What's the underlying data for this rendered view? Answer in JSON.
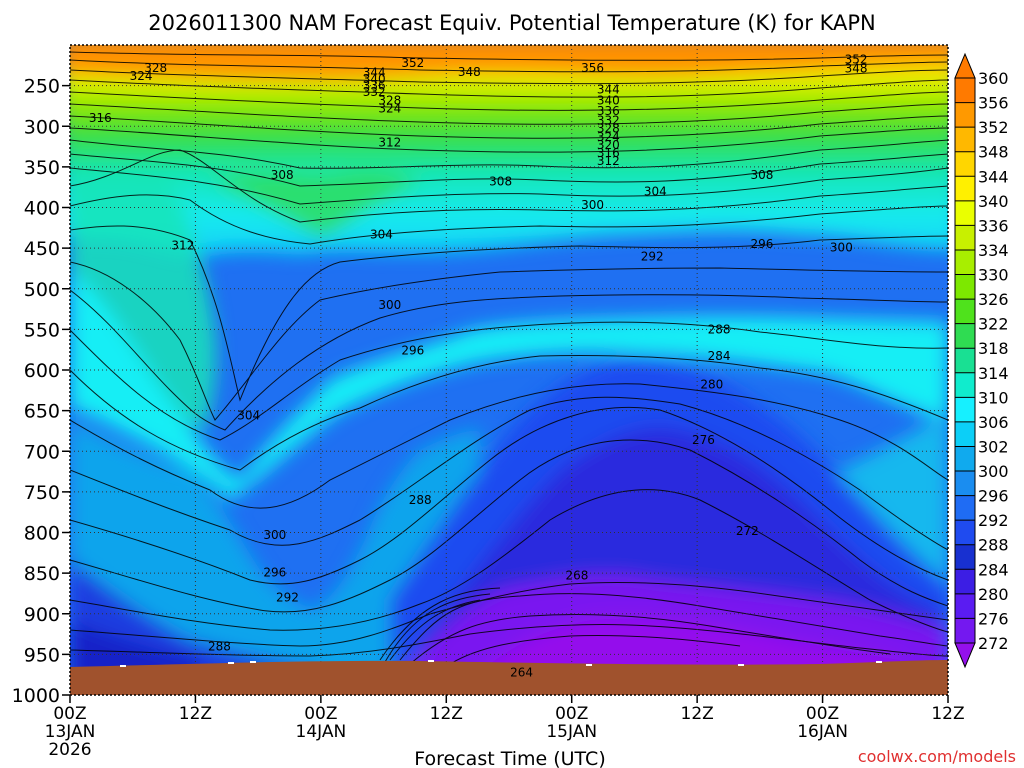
{
  "chart_data": {
    "type": "heatmap",
    "title": "2026011300 NAM Forecast Equiv. Potential Temperature (K) for KAPN",
    "xlabel": "Forecast Time (UTC)",
    "credit": "coolwx.com/models",
    "x_ticks": [
      {
        "hour": 0,
        "lines": [
          "00Z",
          "13JAN",
          "2026"
        ]
      },
      {
        "hour": 12,
        "lines": [
          "12Z"
        ]
      },
      {
        "hour": 24,
        "lines": [
          "00Z",
          "14JAN"
        ]
      },
      {
        "hour": 36,
        "lines": [
          "12Z"
        ]
      },
      {
        "hour": 48,
        "lines": [
          "00Z",
          "15JAN"
        ]
      },
      {
        "hour": 60,
        "lines": [
          "12Z"
        ]
      },
      {
        "hour": 72,
        "lines": [
          "00Z",
          "16JAN"
        ]
      },
      {
        "hour": 84,
        "lines": [
          "12Z"
        ]
      }
    ],
    "xlim": [
      0,
      84
    ],
    "y_ticks": [
      250,
      300,
      350,
      400,
      450,
      500,
      550,
      600,
      650,
      700,
      750,
      800,
      850,
      900,
      950,
      1000
    ],
    "ylim": [
      200,
      1000
    ],
    "colorbar_labels": [
      360,
      356,
      352,
      348,
      344,
      340,
      336,
      334,
      330,
      326,
      322,
      318,
      314,
      310,
      306,
      302,
      300,
      296,
      292,
      288,
      284,
      280,
      276,
      272
    ],
    "colorbar_colors": [
      "#ff7a00",
      "#ff9900",
      "#ffb800",
      "#ffd600",
      "#fff000",
      "#eaff00",
      "#c8f000",
      "#a8ee00",
      "#7de800",
      "#4fe21c",
      "#2fdc52",
      "#19e093",
      "#10eccd",
      "#16f0ff",
      "#0ccff7",
      "#10aaee",
      "#1a8df0",
      "#1f6cf4",
      "#1f4bf0",
      "#1830d0",
      "#3c1ee4",
      "#5a1cf2",
      "#7418f0",
      "#9410ec"
    ],
    "contour_labels": [
      {
        "v": "352",
        "h": 32.8,
        "p": 222
      },
      {
        "v": "356",
        "h": 50.0,
        "p": 228
      },
      {
        "v": "352",
        "h": 75.2,
        "p": 218
      },
      {
        "v": "348",
        "h": 75.2,
        "p": 229
      },
      {
        "v": "348",
        "h": 38.2,
        "p": 233
      },
      {
        "v": "344",
        "h": 29.1,
        "p": 234
      },
      {
        "v": "340",
        "h": 29.1,
        "p": 242
      },
      {
        "v": "336",
        "h": 29.1,
        "p": 250
      },
      {
        "v": "332",
        "h": 29.1,
        "p": 258
      },
      {
        "v": "328",
        "h": 30.6,
        "p": 268
      },
      {
        "v": "324",
        "h": 30.6,
        "p": 278
      },
      {
        "v": "328",
        "h": 8.2,
        "p": 228
      },
      {
        "v": "324",
        "h": 6.8,
        "p": 238
      },
      {
        "v": "316",
        "h": 2.9,
        "p": 290
      },
      {
        "v": "344",
        "h": 51.5,
        "p": 255
      },
      {
        "v": "340",
        "h": 51.5,
        "p": 268
      },
      {
        "v": "336",
        "h": 51.5,
        "p": 281
      },
      {
        "v": "332",
        "h": 51.5,
        "p": 293
      },
      {
        "v": "328",
        "h": 51.5,
        "p": 303
      },
      {
        "v": "324",
        "h": 51.5,
        "p": 313
      },
      {
        "v": "320",
        "h": 51.5,
        "p": 323
      },
      {
        "v": "316",
        "h": 51.5,
        "p": 333
      },
      {
        "v": "312",
        "h": 51.5,
        "p": 343
      },
      {
        "v": "312",
        "h": 30.6,
        "p": 320
      },
      {
        "v": "308",
        "h": 20.3,
        "p": 360
      },
      {
        "v": "308",
        "h": 41.2,
        "p": 368
      },
      {
        "v": "304",
        "h": 56.0,
        "p": 380
      },
      {
        "v": "308",
        "h": 66.2,
        "p": 360
      },
      {
        "v": "300",
        "h": 50.0,
        "p": 397
      },
      {
        "v": "296",
        "h": 66.2,
        "p": 445
      },
      {
        "v": "300",
        "h": 73.8,
        "p": 449
      },
      {
        "v": "312",
        "h": 10.8,
        "p": 447
      },
      {
        "v": "304",
        "h": 29.8,
        "p": 433
      },
      {
        "v": "292",
        "h": 55.7,
        "p": 460
      },
      {
        "v": "300",
        "h": 30.6,
        "p": 520
      },
      {
        "v": "296",
        "h": 32.8,
        "p": 576
      },
      {
        "v": "288",
        "h": 62.1,
        "p": 550
      },
      {
        "v": "284",
        "h": 62.1,
        "p": 583
      },
      {
        "v": "280",
        "h": 61.4,
        "p": 618
      },
      {
        "v": "276",
        "h": 60.6,
        "p": 686
      },
      {
        "v": "304",
        "h": 17.1,
        "p": 656
      },
      {
        "v": "300",
        "h": 19.6,
        "p": 803
      },
      {
        "v": "296",
        "h": 19.6,
        "p": 849
      },
      {
        "v": "292",
        "h": 20.8,
        "p": 880
      },
      {
        "v": "288",
        "h": 14.3,
        "p": 940
      },
      {
        "v": "288",
        "h": 33.5,
        "p": 760
      },
      {
        "v": "272",
        "h": 64.8,
        "p": 798
      },
      {
        "v": "268",
        "h": 48.5,
        "p": 853
      },
      {
        "v": "264",
        "h": 43.2,
        "p": 972
      }
    ]
  }
}
